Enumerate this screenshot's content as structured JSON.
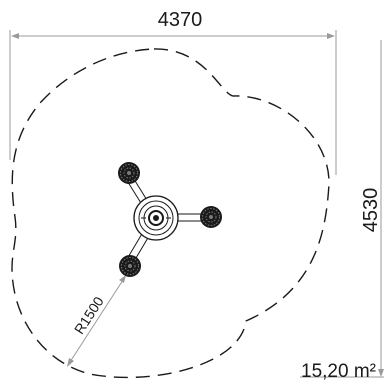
{
  "plan": {
    "width_dimension": "4370",
    "height_dimension": "4530",
    "radius_dimension": "R1500",
    "area": "15,20 m²"
  },
  "colors": {
    "line": "#1a1a1a",
    "dimension_line": "#9a9a9a",
    "text": "#1a1a1a"
  },
  "icons": {
    "seat": "tire-seat-icon",
    "hub": "rotating-hub-icon"
  }
}
